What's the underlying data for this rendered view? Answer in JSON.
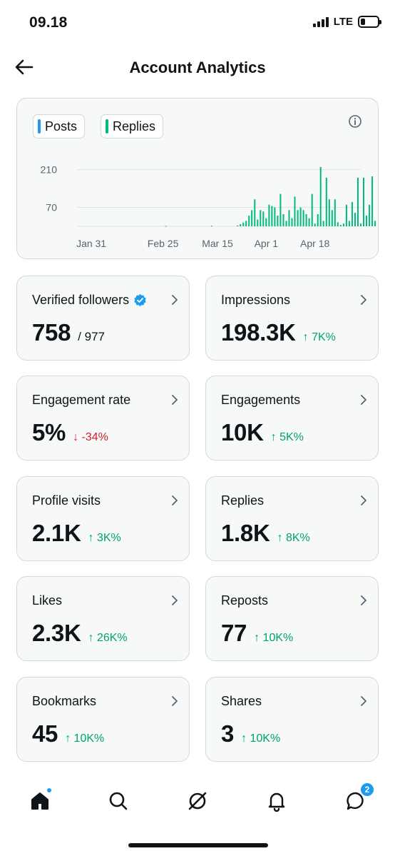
{
  "status_bar": {
    "time": "09.18",
    "network": "LTE",
    "battery_level": 0.25
  },
  "header": {
    "title": "Account Analytics",
    "back_icon": "arrow-left-icon"
  },
  "chart": {
    "legend": [
      {
        "label": "Posts",
        "color": "#1d9bf0"
      },
      {
        "label": "Replies",
        "color": "#00ba7c"
      }
    ],
    "info_icon": "info-icon"
  },
  "chart_data": {
    "type": "bar",
    "title": "",
    "xlabel": "",
    "ylabel": "",
    "y_ticks": [
      70,
      210
    ],
    "y_tick_labels": [
      "70",
      "210"
    ],
    "ylim": [
      0,
      230
    ],
    "x_tick_labels": [
      "Jan 31",
      "Feb 25",
      "Mar 15",
      "Apr 1",
      "Apr 18"
    ],
    "x_tick_days": [
      0,
      25,
      44,
      61,
      78
    ],
    "x_range_days": [
      -5,
      94
    ],
    "grid": true,
    "legend_placement": "top-left",
    "series": [
      {
        "name": "Replies",
        "color": "#00ba7c",
        "points": [
          [
            26,
            1
          ],
          [
            42,
            2
          ],
          [
            51,
            3
          ],
          [
            52,
            8
          ],
          [
            53,
            14
          ],
          [
            54,
            20
          ],
          [
            55,
            40
          ],
          [
            56,
            60
          ],
          [
            57,
            100
          ],
          [
            58,
            25
          ],
          [
            59,
            60
          ],
          [
            60,
            55
          ],
          [
            61,
            30
          ],
          [
            62,
            80
          ],
          [
            63,
            75
          ],
          [
            64,
            70
          ],
          [
            65,
            40
          ],
          [
            66,
            120
          ],
          [
            67,
            45
          ],
          [
            68,
            20
          ],
          [
            69,
            60
          ],
          [
            70,
            30
          ],
          [
            71,
            110
          ],
          [
            72,
            60
          ],
          [
            73,
            70
          ],
          [
            74,
            60
          ],
          [
            75,
            45
          ],
          [
            76,
            30
          ],
          [
            77,
            120
          ],
          [
            78,
            10
          ],
          [
            79,
            45
          ],
          [
            80,
            220
          ],
          [
            81,
            20
          ],
          [
            82,
            180
          ],
          [
            83,
            100
          ],
          [
            84,
            60
          ],
          [
            85,
            100
          ],
          [
            86,
            15
          ],
          [
            87,
            5
          ],
          [
            88,
            10
          ],
          [
            89,
            80
          ],
          [
            90,
            20
          ],
          [
            91,
            90
          ],
          [
            92,
            50
          ],
          [
            93,
            180
          ],
          [
            94,
            10
          ],
          [
            95,
            180
          ],
          [
            96,
            40
          ],
          [
            97,
            80
          ],
          [
            98,
            185
          ],
          [
            99,
            20
          ]
        ]
      }
    ]
  },
  "metrics": [
    {
      "label": "Verified followers",
      "value": "758",
      "total": "/ 977",
      "change": "",
      "direction": "",
      "verified_icon": "verified-badge-icon"
    },
    {
      "label": "Impressions",
      "value": "198.3K",
      "total": "",
      "change": "↑ 7K%",
      "direction": "up"
    },
    {
      "label": "Engagement rate",
      "value": "5%",
      "total": "",
      "change": "↓ -34%",
      "direction": "down"
    },
    {
      "label": "Engagements",
      "value": "10K",
      "total": "",
      "change": "↑ 5K%",
      "direction": "up"
    },
    {
      "label": "Profile visits",
      "value": "2.1K",
      "total": "",
      "change": "↑ 3K%",
      "direction": "up"
    },
    {
      "label": "Replies",
      "value": "1.8K",
      "total": "",
      "change": "↑ 8K%",
      "direction": "up"
    },
    {
      "label": "Likes",
      "value": "2.3K",
      "total": "",
      "change": "↑ 26K%",
      "direction": "up"
    },
    {
      "label": "Reposts",
      "value": "77",
      "total": "",
      "change": "↑ 10K%",
      "direction": "up"
    },
    {
      "label": "Bookmarks",
      "value": "45",
      "total": "",
      "change": "↑ 10K%",
      "direction": "up"
    },
    {
      "label": "Shares",
      "value": "3",
      "total": "",
      "change": "↑ 10K%",
      "direction": "up"
    }
  ],
  "bottom_nav": {
    "items": [
      {
        "icon": "home-icon",
        "active": true
      },
      {
        "icon": "search-icon"
      },
      {
        "icon": "grok-icon"
      },
      {
        "icon": "bell-icon"
      },
      {
        "icon": "messages-icon",
        "badge": "2"
      }
    ]
  }
}
